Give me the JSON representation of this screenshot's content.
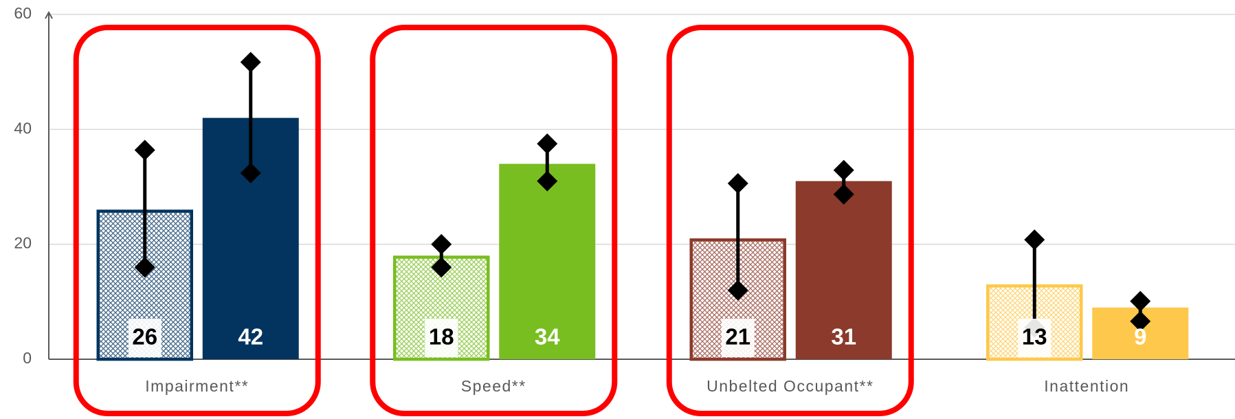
{
  "chart_data": {
    "type": "bar",
    "categories": [
      "Impairment**",
      "Speed**",
      "Unbelted Occupant**",
      "Inattention"
    ],
    "colors": [
      "#03345f",
      "#78be20",
      "#8b3a2b",
      "#fdc84b"
    ],
    "highlight": [
      true,
      true,
      true,
      false
    ],
    "highlight_color": "#ff0000",
    "series": [
      {
        "pattern": "crosshatch",
        "values": [
          26,
          18,
          21,
          13
        ],
        "low": [
          16,
          16,
          12,
          5.5
        ],
        "high": [
          36.4,
          20,
          30.6,
          20.8
        ]
      },
      {
        "pattern": "solid",
        "values": [
          42,
          34,
          31,
          9
        ],
        "low": [
          32.4,
          31,
          28.7,
          6.6
        ],
        "high": [
          51.7,
          37.5,
          32.9,
          10.1
        ]
      }
    ],
    "ylim": [
      0,
      60
    ],
    "yticks": [
      0,
      20,
      40,
      60
    ],
    "grid": true
  }
}
